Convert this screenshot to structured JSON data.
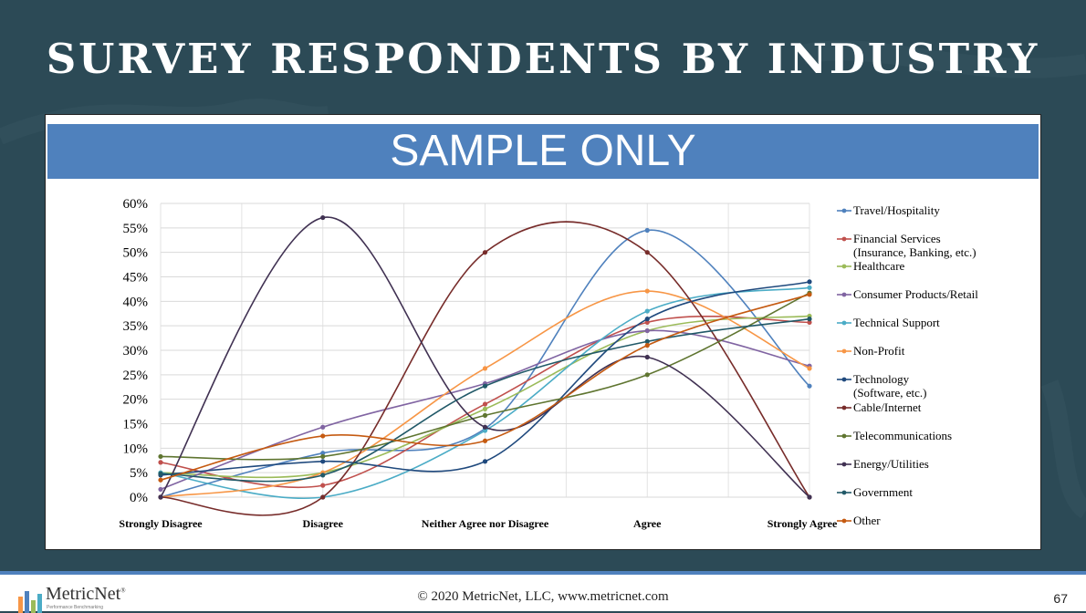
{
  "slide": {
    "title": "SURVEY RESPONDENTS BY INDUSTRY",
    "banner": "SAMPLE ONLY",
    "copyright": "© 2020 MetricNet, LLC, www.metricnet.com",
    "page_number": "67",
    "logo_name": "MetricNet",
    "logo_mark": "®",
    "logo_tagline": "Performance Benchmarking"
  },
  "colors": {
    "background": "#2c4a56",
    "banner": "#4f81bd",
    "footer_rule": "#4f81bd"
  },
  "chart_data": {
    "type": "line",
    "smooth": true,
    "categories": [
      "Strongly Disagree",
      "Disagree",
      "Neither Agree nor Disagree",
      "Agree",
      "Strongly Agree"
    ],
    "y_ticks": [
      "0%",
      "5%",
      "10%",
      "15%",
      "20%",
      "25%",
      "30%",
      "35%",
      "40%",
      "45%",
      "50%",
      "55%",
      "60%"
    ],
    "ylim": [
      0,
      60
    ],
    "y_unit": "%",
    "grid": true,
    "legend_position": "right",
    "series": [
      {
        "name": "Travel/Hospitality",
        "color": "#4f81bd",
        "values": [
          0.0,
          9.0,
          14.0,
          54.5,
          22.7
        ]
      },
      {
        "name": "Financial Services (Insurance, Banking, etc.)",
        "color": "#c0504d",
        "values": [
          7.1,
          2.4,
          19.0,
          35.7,
          35.7
        ]
      },
      {
        "name": "Healthcare",
        "color": "#9bbb59",
        "values": [
          5.0,
          5.0,
          18.0,
          34.0,
          37.0
        ]
      },
      {
        "name": "Consumer Products/Retail",
        "color": "#8064a2",
        "values": [
          1.6,
          14.3,
          23.2,
          34.0,
          26.8
        ]
      },
      {
        "name": "Technical Support",
        "color": "#4bacc6",
        "values": [
          5.0,
          0.0,
          13.6,
          38.0,
          42.8
        ]
      },
      {
        "name": "Non-Profit",
        "color": "#f79646",
        "values": [
          0.0,
          5.0,
          26.3,
          42.1,
          26.3
        ]
      },
      {
        "name": "Technology (Software, etc.)",
        "color": "#1f497d",
        "values": [
          4.5,
          7.3,
          7.3,
          36.4,
          44.0
        ]
      },
      {
        "name": "Cable/Internet",
        "color": "#772c2a",
        "values": [
          0.0,
          0.0,
          50.0,
          50.0,
          0.0
        ]
      },
      {
        "name": "Telecommunications",
        "color": "#5f7530",
        "values": [
          8.3,
          8.3,
          16.7,
          25.0,
          41.7
        ]
      },
      {
        "name": "Energy/Utilities",
        "color": "#403152",
        "values": [
          0.0,
          57.1,
          14.3,
          28.6,
          0.0
        ]
      },
      {
        "name": "Government",
        "color": "#215968",
        "values": [
          4.8,
          4.5,
          22.7,
          31.8,
          36.4
        ]
      },
      {
        "name": "Other",
        "color": "#c55a11",
        "values": [
          3.5,
          12.5,
          11.5,
          31.0,
          41.4
        ]
      }
    ]
  }
}
